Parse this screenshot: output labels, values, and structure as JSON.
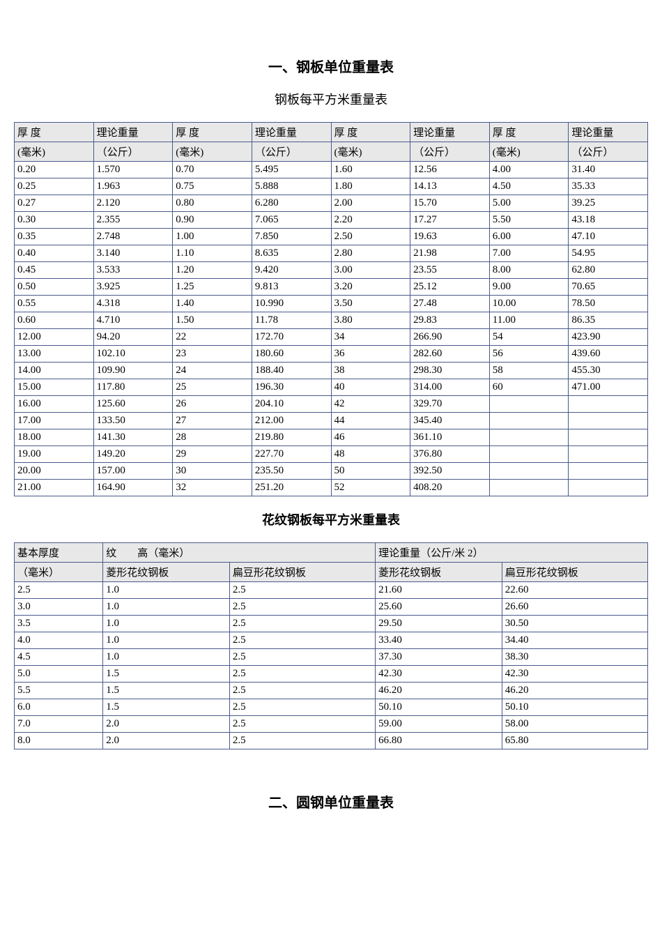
{
  "section1_title": "一、钢板单位重量表",
  "table1_subtitle": "钢板每平方米重量表",
  "table1": {
    "header1": [
      "厚 度",
      "理论重量",
      "厚 度",
      "理论重量",
      "厚 度",
      "理论重量",
      "厚 度",
      "理论重量"
    ],
    "header2": [
      "(毫米)",
      "（公斤）",
      "(毫米)",
      "（公斤）",
      "(毫米)",
      "（公斤）",
      "(毫米)",
      "（公斤）"
    ],
    "rows": [
      [
        "0.20",
        "1.570",
        "0.70",
        "5.495",
        "1.60",
        "12.56",
        "4.00",
        "31.40"
      ],
      [
        "0.25",
        "1.963",
        "0.75",
        "5.888",
        "1.80",
        "14.13",
        "4.50",
        "35.33"
      ],
      [
        "0.27",
        "2.120",
        "0.80",
        "6.280",
        "2.00",
        "15.70",
        "5.00",
        "39.25"
      ],
      [
        "0.30",
        "2.355",
        "0.90",
        "7.065",
        "2.20",
        "17.27",
        "5.50",
        "43.18"
      ],
      [
        "0.35",
        "2.748",
        "1.00",
        "7.850",
        "2.50",
        "19.63",
        "6.00",
        "47.10"
      ],
      [
        "0.40",
        "3.140",
        "1.10",
        "8.635",
        "2.80",
        "21.98",
        "7.00",
        "54.95"
      ],
      [
        "0.45",
        "3.533",
        "1.20",
        "9.420",
        "3.00",
        "23.55",
        "8.00",
        "62.80"
      ],
      [
        "0.50",
        "3.925",
        "1.25",
        "9.813",
        "3.20",
        "25.12",
        "9.00",
        "70.65"
      ],
      [
        "0.55",
        "4.318",
        "1.40",
        "10.990",
        "3.50",
        "27.48",
        "10.00",
        "78.50"
      ],
      [
        "0.60",
        "4.710",
        "1.50",
        "11.78",
        "3.80",
        "29.83",
        "11.00",
        "86.35"
      ],
      [
        "12.00",
        "94.20",
        "22",
        "172.70",
        "34",
        "266.90",
        "54",
        "423.90"
      ],
      [
        "13.00",
        "102.10",
        "23",
        "180.60",
        "36",
        "282.60",
        "56",
        "439.60"
      ],
      [
        "14.00",
        "109.90",
        "24",
        "188.40",
        "38",
        "298.30",
        "58",
        "455.30"
      ],
      [
        "15.00",
        "117.80",
        "25",
        "196.30",
        "40",
        "314.00",
        "60",
        "471.00"
      ],
      [
        "16.00",
        "125.60",
        "26",
        "204.10",
        "42",
        "329.70",
        "",
        ""
      ],
      [
        "17.00",
        "133.50",
        "27",
        "212.00",
        "44",
        "345.40",
        "",
        ""
      ],
      [
        "18.00",
        "141.30",
        "28",
        "219.80",
        "46",
        "361.10",
        "",
        ""
      ],
      [
        "19.00",
        "149.20",
        "29",
        "227.70",
        "48",
        "376.80",
        "",
        ""
      ],
      [
        "20.00",
        "157.00",
        "30",
        "235.50",
        "50",
        "392.50",
        "",
        ""
      ],
      [
        "21.00",
        "164.90",
        "32",
        "251.20",
        "52",
        "408.20",
        "",
        ""
      ]
    ],
    "border_color": "#4a5a8a",
    "header_bg": "#e8e8e8"
  },
  "table2_subtitle": "花纹钢板每平方米重量表",
  "table2": {
    "header1": [
      "基本厚度",
      "纹　　高（毫米）",
      "理论重量（公斤/米 2）"
    ],
    "header2": [
      "（毫米）",
      "菱形花纹钢板",
      "扁豆形花纹钢板",
      "菱形花纹钢板",
      "扁豆形花纹钢板"
    ],
    "rows": [
      [
        "2.5",
        "1.0",
        "2.5",
        "21.60",
        "22.60"
      ],
      [
        "3.0",
        "1.0",
        "2.5",
        "25.60",
        "26.60"
      ],
      [
        "3.5",
        "1.0",
        "2.5",
        "29.50",
        "30.50"
      ],
      [
        "4.0",
        "1.0",
        "2.5",
        "33.40",
        "34.40"
      ],
      [
        "4.5",
        "1.0",
        "2.5",
        "37.30",
        "38.30"
      ],
      [
        "5.0",
        "1.5",
        "2.5",
        "42.30",
        "42.30"
      ],
      [
        "5.5",
        "1.5",
        "2.5",
        "46.20",
        "46.20"
      ],
      [
        "6.0",
        "1.5",
        "2.5",
        "50.10",
        "50.10"
      ],
      [
        "7.0",
        "2.0",
        "2.5",
        "59.00",
        "58.00"
      ],
      [
        "8.0",
        "2.0",
        "2.5",
        "66.80",
        "65.80"
      ]
    ],
    "border_color": "#4a5a8a",
    "header_bg": "#e8e8e8"
  },
  "section2_title": "二、圆钢单位重量表"
}
